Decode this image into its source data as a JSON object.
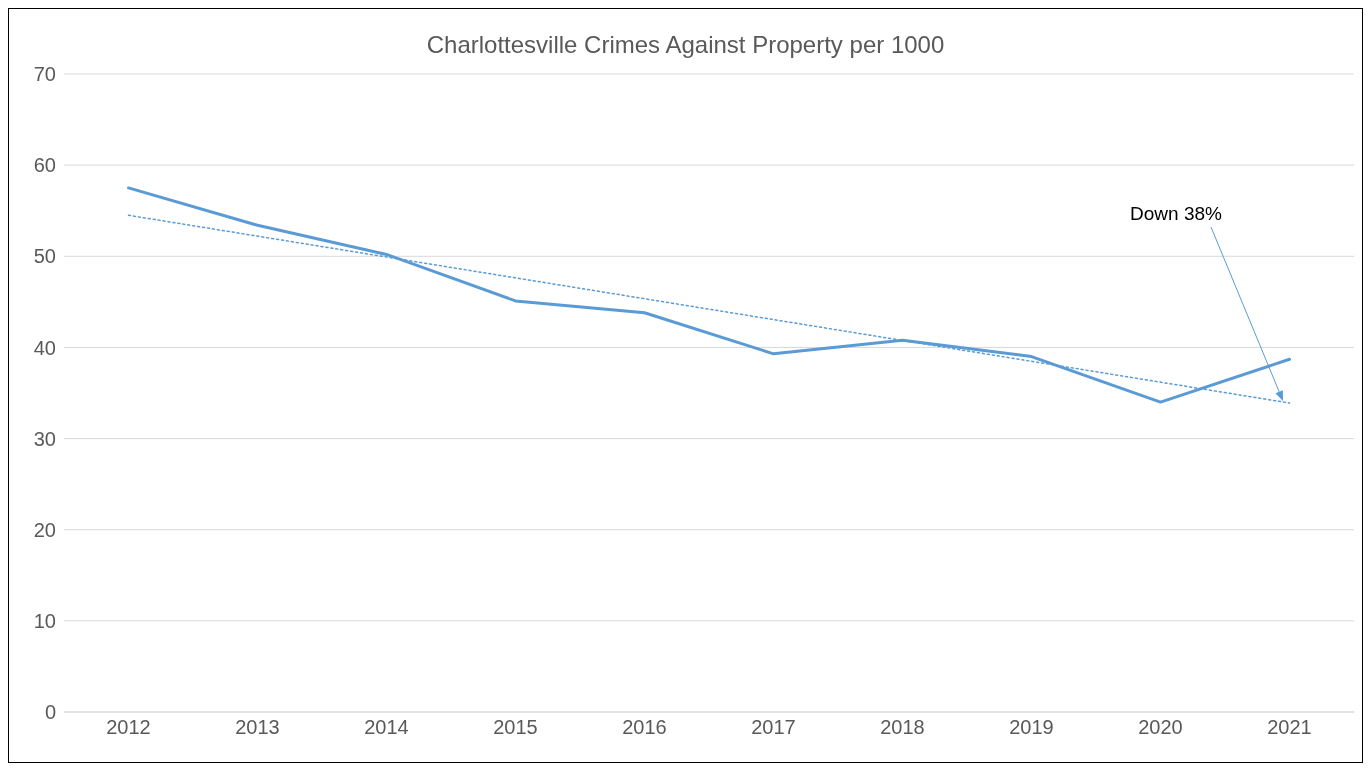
{
  "chart_data": {
    "type": "line",
    "title": "Charlottesville Crimes Against Property per 1000",
    "x": [
      2012,
      2013,
      2014,
      2015,
      2016,
      2017,
      2018,
      2019,
      2020,
      2021
    ],
    "xlim": [
      2011.5,
      2021.5
    ],
    "xticks": [
      2012,
      2013,
      2014,
      2015,
      2016,
      2017,
      2018,
      2019,
      2020,
      2021
    ],
    "ylim": [
      0,
      70
    ],
    "yticks": [
      0,
      10,
      20,
      30,
      40,
      50,
      60,
      70
    ],
    "grid": "y",
    "marker": "none",
    "series": [
      {
        "color": "#5b9bd5",
        "values": [
          57.5,
          53.4,
          50.2,
          45.1,
          43.8,
          39.3,
          40.8,
          39.0,
          34.0,
          38.7
        ]
      },
      {
        "type": "line",
        "color": "#5b9bd5",
        "line_style": "dotted",
        "x": [
          2012,
          2021
        ],
        "values": [
          54.5,
          33.9
        ]
      }
    ],
    "annotations": [
      "Down 38%"
    ]
  }
}
